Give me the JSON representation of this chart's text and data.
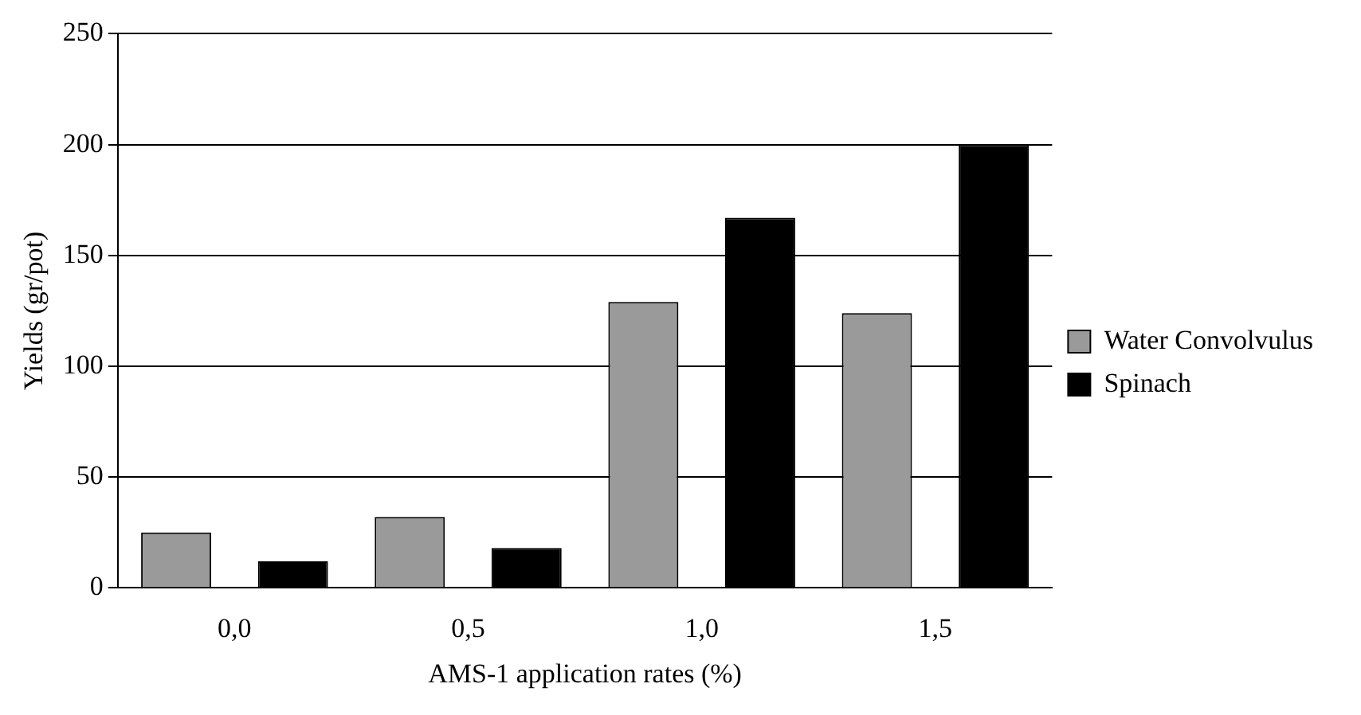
{
  "chart_data": {
    "type": "bar",
    "xlabel": "AMS-1 application rates (%)",
    "ylabel": "Yields (gr/pot)",
    "categories": [
      "0,0",
      "0,5",
      "1,0",
      "1,5"
    ],
    "series": [
      {
        "name": "Water Convolvulus",
        "color": "#9a9a9a",
        "values": [
          25,
          32,
          129,
          124
        ]
      },
      {
        "name": "Spinach",
        "color": "#000000",
        "values": [
          12,
          18,
          167,
          200
        ]
      }
    ],
    "ylim": [
      0,
      250
    ],
    "yticks": [
      0,
      50,
      100,
      150,
      200,
      250
    ],
    "grid": "y",
    "legend": "right"
  }
}
